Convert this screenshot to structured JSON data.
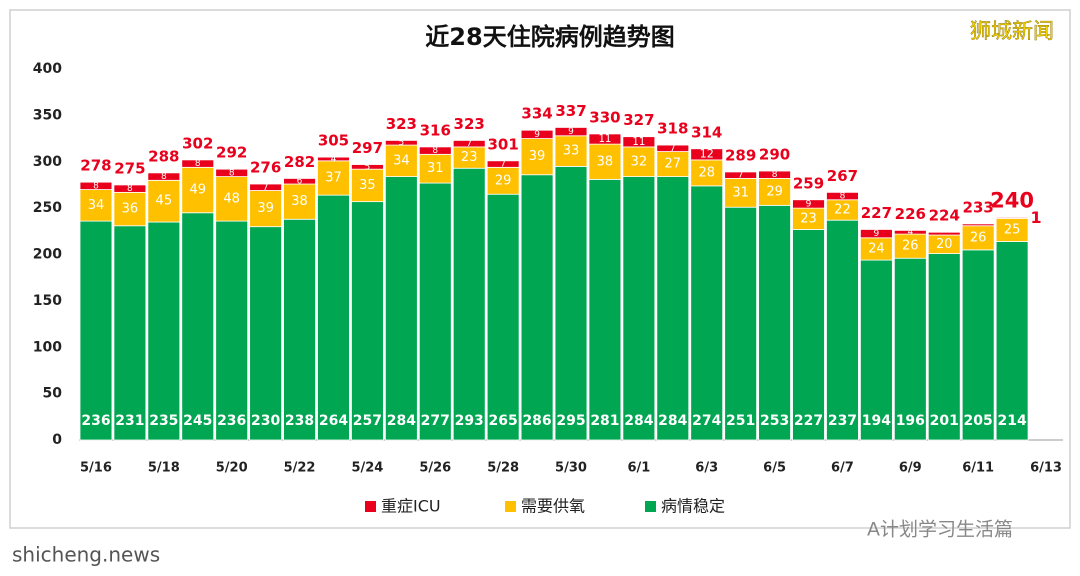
{
  "chart_data": {
    "type": "stacked-bar",
    "title": "近28天住院病例趋势图",
    "categories": [
      "5/16",
      null,
      "5/18",
      null,
      "5/20",
      null,
      "5/22",
      null,
      "5/24",
      null,
      "5/26",
      null,
      "5/28",
      null,
      "5/30",
      null,
      "6/1",
      null,
      "6/3",
      null,
      "6/5",
      null,
      "6/7",
      null,
      "6/9",
      null,
      "6/11",
      null,
      "6/13"
    ],
    "series": [
      {
        "name": "病情稳定",
        "color": "#00a651",
        "values": [
          236,
          231,
          235,
          245,
          236,
          230,
          238,
          264,
          257,
          284,
          277,
          293,
          265,
          286,
          295,
          281,
          284,
          284,
          274,
          251,
          253,
          227,
          237,
          194,
          196,
          201,
          205,
          214,
          null
        ]
      },
      {
        "name": "需要供氧",
        "color": "#ffc000",
        "values": [
          34,
          36,
          45,
          49,
          48,
          39,
          38,
          37,
          35,
          34,
          31,
          23,
          29,
          39,
          33,
          38,
          32,
          27,
          28,
          31,
          29,
          23,
          22,
          24,
          26,
          20,
          26,
          25,
          null
        ]
      },
      {
        "name": "重症ICU",
        "color": "#e8001c",
        "values": [
          8,
          8,
          8,
          8,
          8,
          7,
          6,
          4,
          5,
          5,
          8,
          7,
          7,
          9,
          9,
          11,
          11,
          7,
          12,
          7,
          8,
          9,
          8,
          9,
          4,
          3,
          2,
          1,
          null
        ]
      }
    ],
    "totals": [
      278,
      275,
      288,
      302,
      292,
      276,
      282,
      305,
      297,
      323,
      316,
      323,
      301,
      334,
      337,
      330,
      327,
      318,
      314,
      289,
      290,
      259,
      267,
      227,
      226,
      224,
      233,
      240,
      null
    ],
    "ylim": [
      0,
      400
    ],
    "yticks": [
      0,
      50,
      100,
      150,
      200,
      250,
      300,
      350,
      400
    ],
    "legend": "bottom"
  },
  "watermarks": {
    "top_right": "狮城新闻",
    "bottom_right": "A计划学习生活篇",
    "bottom_left": "shicheng.news"
  }
}
